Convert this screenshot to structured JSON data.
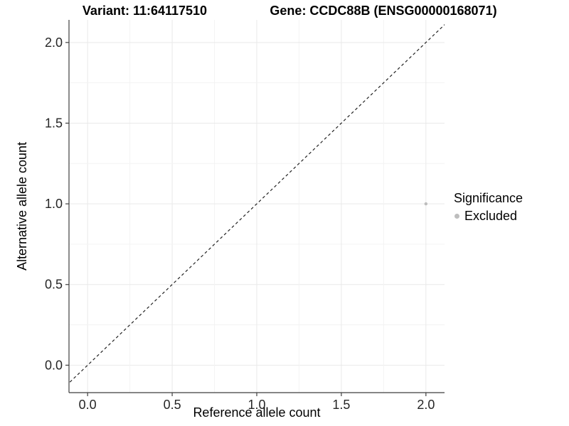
{
  "header": {
    "variant_title": "Variant: 11:64117510",
    "gene_title": "Gene: CCDC88B (ENSG00000168071)"
  },
  "legend": {
    "title": "Significance",
    "items": [
      {
        "label": "Excluded",
        "color": "#bdbdbd"
      }
    ]
  },
  "chart_data": {
    "type": "scatter",
    "titles": [
      "Variant: 11:64117510",
      "Gene: CCDC88B (ENSG00000168071)"
    ],
    "xlabel": "Reference allele count",
    "ylabel": "Alternative allele count",
    "xlim": [
      -0.11,
      2.11
    ],
    "ylim": [
      -0.17,
      2.14
    ],
    "xticks": {
      "values": [
        0,
        0.5,
        1,
        1.5,
        2
      ],
      "labels": [
        "0.0",
        "0.5",
        "1.0",
        "1.5",
        "2.0"
      ]
    },
    "yticks": {
      "values": [
        0,
        0.5,
        1,
        1.5,
        2
      ],
      "labels": [
        "0.0",
        "0.5",
        "1.0",
        "1.5",
        "2.0"
      ]
    },
    "grid": true,
    "minor_grid_step": 0.25,
    "grid_range": [
      0,
      2
    ],
    "abline": {
      "slope": 1,
      "intercept": 0,
      "style": "dashed"
    },
    "series": [
      {
        "name": "Excluded",
        "color": "#bdbdbd",
        "points": [
          {
            "x": 2.0,
            "y": 1.0
          }
        ]
      }
    ],
    "legend_position": "right"
  },
  "colors": {
    "grid_major": "#e9e9e9",
    "grid_minor": "#f3f3f3",
    "axis_line": "#3f3f3f",
    "tick_text": "#262626",
    "abline": "#222222"
  }
}
